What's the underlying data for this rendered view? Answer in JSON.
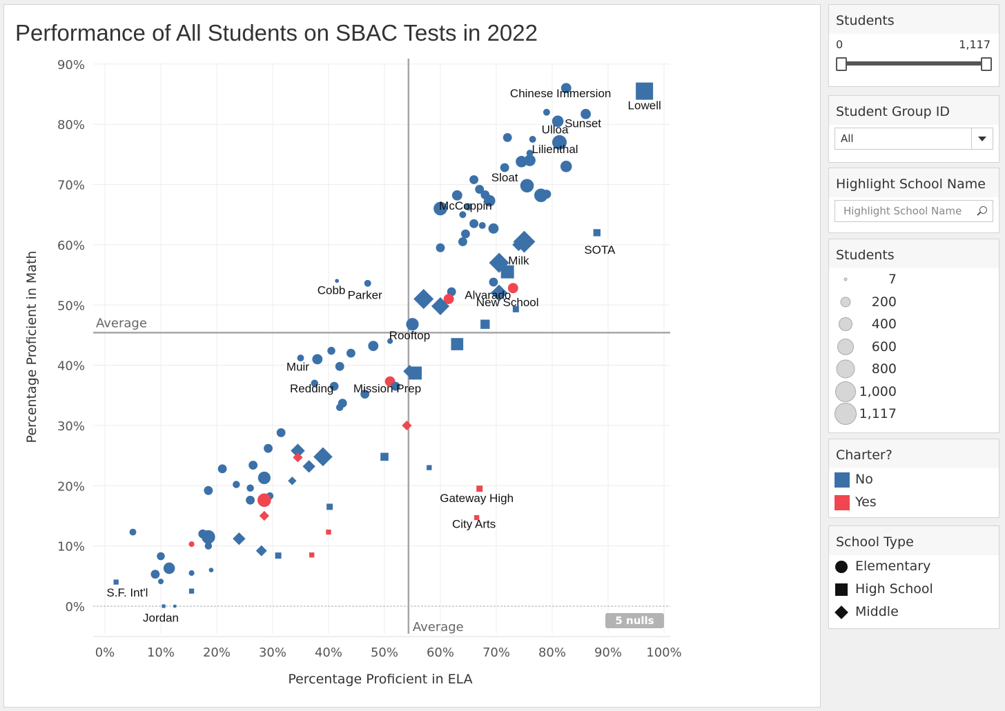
{
  "chart_data": {
    "type": "scatter",
    "title": "Performance of All Students on SBAC Tests in 2022",
    "xlabel": "Percentage Proficient in ELA",
    "ylabel": "Percentage Proficient in Math",
    "xlim": [
      -2,
      100
    ],
    "ylim": [
      -4,
      91
    ],
    "x_ticks": [
      "0%",
      "10%",
      "20%",
      "30%",
      "40%",
      "50%",
      "60%",
      "70%",
      "80%",
      "90%",
      "100%"
    ],
    "y_ticks": [
      "0%",
      "10%",
      "20%",
      "30%",
      "40%",
      "50%",
      "60%",
      "70%",
      "80%",
      "90%"
    ],
    "x_average": 54.3,
    "y_average": 45.4,
    "average_label": "Average",
    "nulls_badge": "5 nulls",
    "grid": true,
    "colors": {
      "No": "#3b71a8",
      "Yes": "#f0464f"
    },
    "points": [
      [
        82.5,
        86,
        "E",
        "No",
        200
      ],
      [
        86,
        81.7,
        "E",
        "No",
        200
      ],
      [
        79,
        82,
        "E",
        "No",
        90
      ],
      [
        81,
        80.5,
        "E",
        "No",
        250
      ],
      [
        81.3,
        77,
        "E",
        "No",
        400
      ],
      [
        72,
        77.8,
        "E",
        "No",
        150
      ],
      [
        76.5,
        77.5,
        "E",
        "No",
        90
      ],
      [
        76,
        75.2,
        "E",
        "No",
        90
      ],
      [
        82.5,
        73,
        "E",
        "No",
        250
      ],
      [
        76,
        74,
        "E",
        "No",
        250
      ],
      [
        74.5,
        73.8,
        "E",
        "No",
        250
      ],
      [
        71.5,
        72.8,
        "E",
        "No",
        150
      ],
      [
        66,
        70.8,
        "E",
        "No",
        150
      ],
      [
        67,
        69.2,
        "E",
        "No",
        150
      ],
      [
        63,
        68.2,
        "E",
        "No",
        200
      ],
      [
        68,
        68.3,
        "E",
        "No",
        150
      ],
      [
        68.8,
        67.3,
        "E",
        "No",
        250
      ],
      [
        75.5,
        69.8,
        "E",
        "No",
        350
      ],
      [
        78,
        68.2,
        "E",
        "No",
        350
      ],
      [
        79,
        68.4,
        "E",
        "No",
        150
      ],
      [
        60,
        66,
        "E",
        "No",
        350
      ],
      [
        65,
        66.3,
        "E",
        "No",
        100
      ],
      [
        64,
        65,
        "E",
        "No",
        90
      ],
      [
        66,
        63.5,
        "E",
        "No",
        150
      ],
      [
        67.5,
        63.2,
        "E",
        "No",
        90
      ],
      [
        69.5,
        62.7,
        "E",
        "No",
        200
      ],
      [
        64.5,
        61.8,
        "E",
        "No",
        150
      ],
      [
        64,
        60.5,
        "E",
        "No",
        150
      ],
      [
        60,
        59.5,
        "E",
        "No",
        150
      ],
      [
        69.5,
        53.8,
        "E",
        "No",
        150
      ],
      [
        62,
        52.2,
        "E",
        "No",
        150
      ],
      [
        61.5,
        51,
        "E",
        "Yes",
        200
      ],
      [
        73,
        52.8,
        "E",
        "Yes",
        200
      ],
      [
        41.5,
        54,
        "E",
        "No",
        30
      ],
      [
        47,
        53.6,
        "E",
        "No",
        90
      ],
      [
        55,
        46.8,
        "E",
        "No",
        300
      ],
      [
        51,
        44,
        "E",
        "No",
        60
      ],
      [
        48,
        43.2,
        "E",
        "No",
        200
      ],
      [
        44,
        42,
        "E",
        "No",
        150
      ],
      [
        40.5,
        42.4,
        "E",
        "No",
        120
      ],
      [
        38,
        41,
        "E",
        "No",
        200
      ],
      [
        35,
        41.2,
        "E",
        "No",
        90
      ],
      [
        42,
        39.8,
        "E",
        "No",
        150
      ],
      [
        51,
        37.3,
        "E",
        "Yes",
        200
      ],
      [
        52,
        36.5,
        "E",
        "No",
        150
      ],
      [
        37.5,
        37,
        "E",
        "No",
        100
      ],
      [
        41,
        36.5,
        "E",
        "No",
        150
      ],
      [
        46.5,
        35.2,
        "E",
        "No",
        150
      ],
      [
        42.5,
        33.7,
        "E",
        "No",
        150
      ],
      [
        42,
        33,
        "E",
        "No",
        100
      ],
      [
        31.5,
        28.8,
        "E",
        "No",
        150
      ],
      [
        29.2,
        26.2,
        "E",
        "No",
        150
      ],
      [
        21,
        22.8,
        "E",
        "No",
        150
      ],
      [
        26.5,
        23.4,
        "E",
        "No",
        150
      ],
      [
        28.5,
        21.3,
        "E",
        "No",
        300
      ],
      [
        23.5,
        20.2,
        "E",
        "No",
        100
      ],
      [
        26,
        19.6,
        "E",
        "No",
        100
      ],
      [
        18.5,
        19.2,
        "E",
        "No",
        150
      ],
      [
        29.5,
        18.3,
        "E",
        "No",
        100
      ],
      [
        26,
        17.6,
        "E",
        "No",
        150
      ],
      [
        28.5,
        17.6,
        "E",
        "Yes",
        350
      ],
      [
        17.5,
        12,
        "E",
        "No",
        150
      ],
      [
        18.5,
        11.5,
        "E",
        "No",
        350
      ],
      [
        18.5,
        10,
        "E",
        "No",
        100
      ],
      [
        5,
        12.3,
        "E",
        "No",
        90
      ],
      [
        15.5,
        10.3,
        "E",
        "Yes",
        60
      ],
      [
        10,
        8.3,
        "E",
        "No",
        120
      ],
      [
        11.5,
        6.3,
        "E",
        "No",
        250
      ],
      [
        9,
        5.3,
        "E",
        "No",
        150
      ],
      [
        10,
        4.1,
        "E",
        "No",
        60
      ],
      [
        15.5,
        5.5,
        "E",
        "No",
        60
      ],
      [
        19,
        6,
        "E",
        "No",
        40
      ],
      [
        96.5,
        85.5,
        "H",
        "No",
        700
      ],
      [
        88,
        62,
        "H",
        "No",
        120
      ],
      [
        72,
        55.5,
        "H",
        "No",
        400
      ],
      [
        73.5,
        49.3,
        "H",
        "No",
        90
      ],
      [
        68,
        46.8,
        "H",
        "No",
        200
      ],
      [
        63,
        43.5,
        "H",
        "No",
        350
      ],
      [
        55.5,
        38.7,
        "H",
        "No",
        400
      ],
      [
        50,
        24.8,
        "H",
        "No",
        150
      ],
      [
        58,
        23,
        "H",
        "No",
        60
      ],
      [
        67,
        19.5,
        "H",
        "Yes",
        90
      ],
      [
        66.5,
        14.7,
        "H",
        "Yes",
        60
      ],
      [
        40.2,
        16.5,
        "H",
        "No",
        90
      ],
      [
        40,
        12.3,
        "H",
        "Yes",
        60
      ],
      [
        37,
        8.5,
        "H",
        "Yes",
        60
      ],
      [
        31,
        8.4,
        "H",
        "No",
        90
      ],
      [
        15.5,
        2.5,
        "H",
        "No",
        60
      ],
      [
        2,
        4,
        "H",
        "No",
        60
      ],
      [
        10.5,
        0,
        "H",
        "No",
        30
      ],
      [
        12.5,
        0,
        "H",
        "No",
        20
      ],
      [
        75,
        60.5,
        "M",
        "No",
        600
      ],
      [
        74,
        60,
        "M",
        "No",
        200
      ],
      [
        70.5,
        57,
        "M",
        "No",
        500
      ],
      [
        57,
        51,
        "M",
        "No",
        500
      ],
      [
        70.5,
        52,
        "M",
        "No",
        350
      ],
      [
        60,
        49.8,
        "M",
        "No",
        400
      ],
      [
        54.5,
        39,
        "M",
        "No",
        200
      ],
      [
        54,
        30,
        "M",
        "Yes",
        120
      ],
      [
        34.5,
        25.8,
        "M",
        "No",
        250
      ],
      [
        34.5,
        24.7,
        "M",
        "Yes",
        120
      ],
      [
        39,
        24.8,
        "M",
        "No",
        450
      ],
      [
        36.5,
        23.2,
        "M",
        "No",
        200
      ],
      [
        33.5,
        20.8,
        "M",
        "No",
        90
      ],
      [
        24,
        11.2,
        "M",
        "No",
        200
      ],
      [
        18.5,
        11,
        "M",
        "No",
        200
      ],
      [
        28,
        9.2,
        "M",
        "No",
        150
      ],
      [
        28.5,
        15,
        "M",
        "Yes",
        120
      ]
    ],
    "labels": [
      {
        "text": "Chinese Immersion",
        "x": 81.5,
        "y": 84.5
      },
      {
        "text": "Lowell",
        "x": 96.5,
        "y": 82.5
      },
      {
        "text": "Sunset",
        "x": 85.5,
        "y": 79.5
      },
      {
        "text": "Ulloa",
        "x": 80.5,
        "y": 78.5
      },
      {
        "text": "Lilienthal",
        "x": 80.5,
        "y": 75.2
      },
      {
        "text": "Sloat",
        "x": 71.5,
        "y": 70.5
      },
      {
        "text": "McCoppin",
        "x": 64.5,
        "y": 65.8
      },
      {
        "text": "SOTA",
        "x": 88.5,
        "y": 58.5
      },
      {
        "text": "Milk",
        "x": 74,
        "y": 56.7
      },
      {
        "text": "Cobb",
        "x": 40.5,
        "y": 51.8
      },
      {
        "text": "Parker",
        "x": 46.5,
        "y": 51
      },
      {
        "text": "Alvarado",
        "x": 68.5,
        "y": 51
      },
      {
        "text": "New School",
        "x": 72,
        "y": 49.8
      },
      {
        "text": "Rooftop",
        "x": 54.5,
        "y": 44.3
      },
      {
        "text": "Muir",
        "x": 34.5,
        "y": 39.1
      },
      {
        "text": "Redding",
        "x": 37,
        "y": 35.5
      },
      {
        "text": "Mission Prep",
        "x": 50.5,
        "y": 35.5
      },
      {
        "text": "Gateway High",
        "x": 66.5,
        "y": 17.3
      },
      {
        "text": "City Arts",
        "x": 66,
        "y": 13
      },
      {
        "text": "S.F.  Int'l",
        "x": 4,
        "y": 1.6
      },
      {
        "text": "Jordan",
        "x": 10,
        "y": -2.6
      }
    ]
  },
  "filters": {
    "students_range": {
      "title": "Students",
      "min_label": "0",
      "max_label": "1,117"
    },
    "student_group": {
      "title": "Student Group ID",
      "value": "All"
    },
    "highlight": {
      "title": "Highlight School Name",
      "placeholder": "Highlight School Name"
    }
  },
  "legend_size": {
    "title": "Students",
    "items": [
      {
        "label": "7",
        "d": 5
      },
      {
        "label": "200",
        "d": 15
      },
      {
        "label": "400",
        "d": 20
      },
      {
        "label": "600",
        "d": 24
      },
      {
        "label": "800",
        "d": 27
      },
      {
        "label": "1,000",
        "d": 30
      },
      {
        "label": "1,117",
        "d": 32
      }
    ]
  },
  "legend_charter": {
    "title": "Charter?",
    "items": [
      {
        "label": "No",
        "color": "#3b71a8"
      },
      {
        "label": "Yes",
        "color": "#f0464f"
      }
    ]
  },
  "legend_type": {
    "title": "School Type",
    "items": [
      {
        "label": "Elementary",
        "shape": "circle-icon"
      },
      {
        "label": "High School",
        "shape": "square-icon"
      },
      {
        "label": "Middle",
        "shape": "diamond-icon"
      }
    ]
  }
}
